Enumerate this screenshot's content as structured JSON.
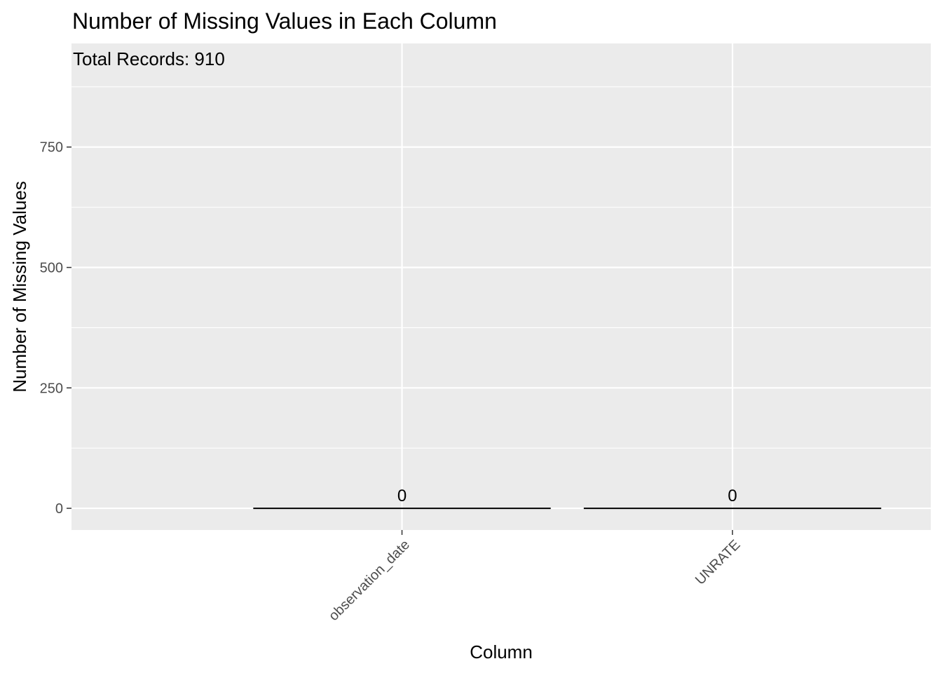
{
  "chart_data": {
    "type": "bar",
    "title": "Number of Missing Values in Each Column",
    "annotation": "Total Records: 910",
    "xlabel": "Column",
    "ylabel": "Number of Missing Values",
    "categories": [
      "observation_date",
      "UNRATE"
    ],
    "values": [
      0,
      0
    ],
    "data_labels": [
      "0",
      "0"
    ],
    "y_ticks": [
      0,
      250,
      500,
      750
    ],
    "y_tick_labels": [
      "0",
      "250",
      "500",
      "750"
    ],
    "ylim": [
      -45,
      965
    ],
    "grid": true,
    "legend": "none",
    "colors": {
      "panel_background": "#ebebeb",
      "grid": "#ffffff",
      "bar": "#000000",
      "tick_text": "#4d4d4d"
    }
  }
}
